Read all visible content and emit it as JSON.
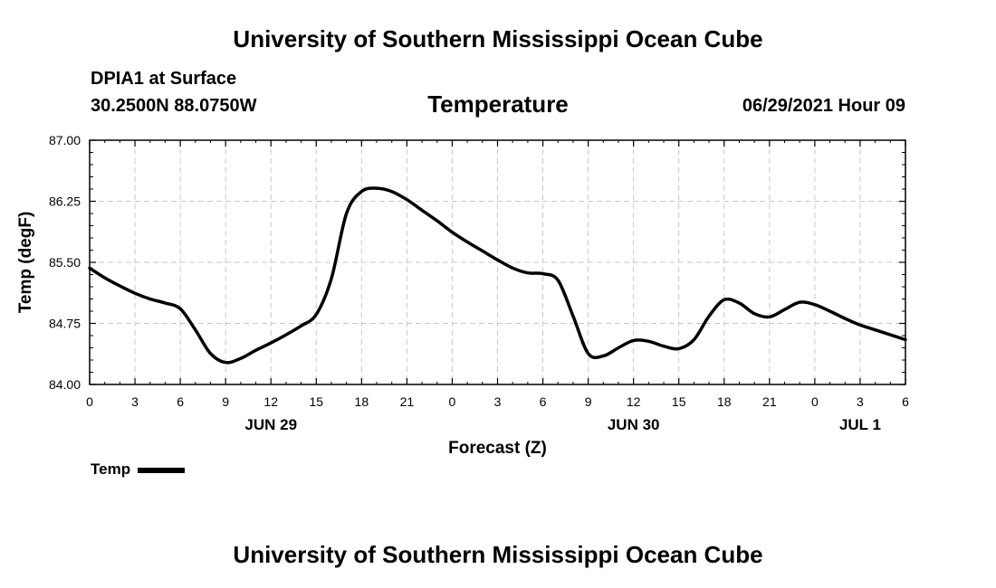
{
  "header": {
    "title": "University of Southern Mississippi Ocean Cube",
    "station": "DPIA1 at Surface",
    "coords": "30.2500N  88.0750W",
    "datetime": "06/29/2021 Hour 09"
  },
  "footer": {
    "title": "University of Southern Mississippi Ocean Cube"
  },
  "chart_data": {
    "type": "line",
    "title": "Temperature",
    "xlabel": "Forecast (Z)",
    "ylabel": "Temp (degF)",
    "ylim": [
      84.0,
      87.0
    ],
    "xlim": [
      0,
      54
    ],
    "yticks": [
      "84.00",
      "84.75",
      "85.50",
      "86.25",
      "87.00"
    ],
    "xticks": [
      "0",
      "3",
      "6",
      "9",
      "12",
      "15",
      "18",
      "21",
      "0",
      "3",
      "6",
      "9",
      "12",
      "15",
      "18",
      "21",
      "0",
      "3",
      "6"
    ],
    "date_labels": [
      {
        "label": "JUN 29",
        "at_tick": 12
      },
      {
        "label": "JUN 30",
        "at_tick": 36
      },
      {
        "label": "JUL 1",
        "at_tick": 51
      }
    ],
    "grid": true,
    "legend_position": "bottom-left",
    "series": [
      {
        "name": "Temp",
        "color": "#000000",
        "x": [
          0,
          1,
          2,
          3,
          4,
          5,
          6,
          7,
          8,
          9,
          10,
          11,
          12,
          13,
          14,
          15,
          16,
          17,
          18,
          19,
          20,
          21,
          22,
          23,
          24,
          25,
          26,
          27,
          28,
          29,
          30,
          31,
          32,
          33,
          34,
          35,
          36,
          37,
          38,
          39,
          40,
          41,
          42,
          43,
          44,
          45,
          46,
          47,
          48,
          49,
          50,
          51,
          52,
          53,
          54
        ],
        "y": [
          85.43,
          85.31,
          85.21,
          85.12,
          85.05,
          85.0,
          84.93,
          84.67,
          84.38,
          84.27,
          84.32,
          84.42,
          84.51,
          84.61,
          84.72,
          84.86,
          85.3,
          86.1,
          86.37,
          86.41,
          86.37,
          86.27,
          86.14,
          86.01,
          85.87,
          85.75,
          85.64,
          85.53,
          85.43,
          85.37,
          85.36,
          85.28,
          84.84,
          84.38,
          84.35,
          84.45,
          84.54,
          84.53,
          84.47,
          84.44,
          84.55,
          84.84,
          85.04,
          85.0,
          84.87,
          84.83,
          84.92,
          85.01,
          84.98,
          84.9,
          84.81,
          84.73,
          84.67,
          84.61,
          84.55
        ]
      }
    ]
  }
}
